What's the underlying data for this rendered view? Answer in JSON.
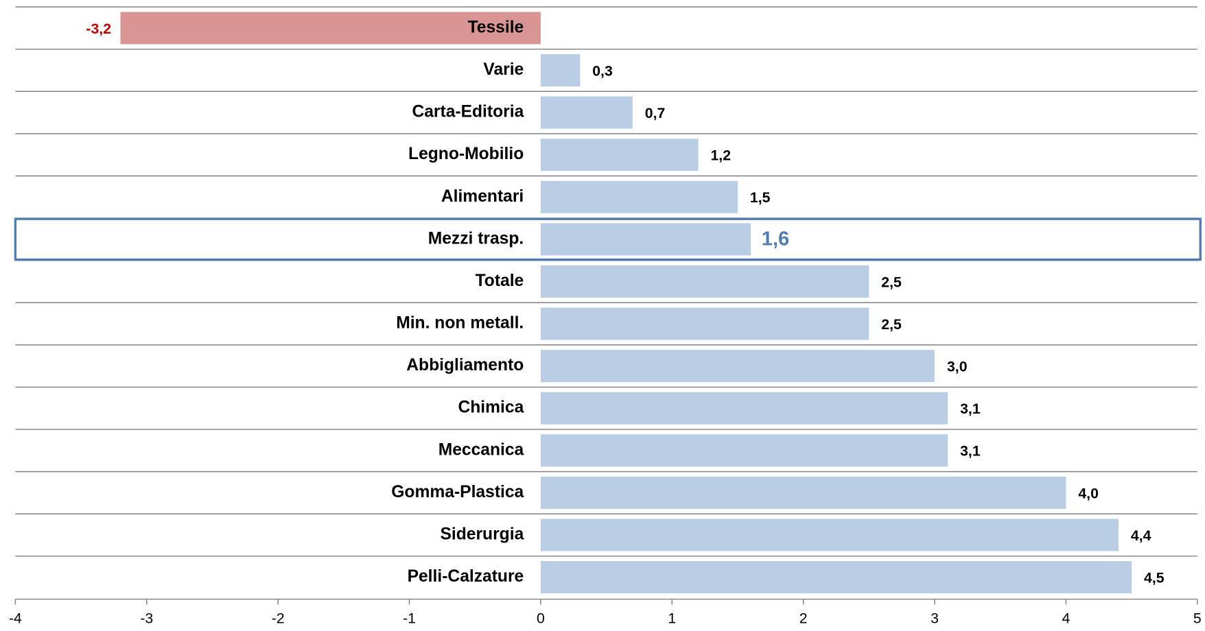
{
  "chart_data": {
    "type": "hbar",
    "categories": [
      "Tessile",
      "Varie",
      "Carta-Editoria",
      "Legno-Mobilio",
      "Alimentari",
      "Mezzi trasp.",
      "Totale",
      "Min. non metall.",
      "Abbigliamento",
      "Chimica",
      "Meccanica",
      "Gomma-Plastica",
      "Siderurgia",
      "Pelli-Calzature"
    ],
    "values": [
      -3.2,
      0.3,
      0.7,
      1.2,
      1.5,
      1.6,
      2.5,
      2.5,
      3.0,
      3.1,
      3.1,
      4.0,
      4.4,
      4.5
    ],
    "value_labels": [
      "-3,2",
      "0,3",
      "0,7",
      "1,2",
      "1,5",
      "1,6",
      "2,5",
      "2,5",
      "3,0",
      "3,1",
      "3,1",
      "4,0",
      "4,4",
      "4,5"
    ],
    "color": "#b9cde5",
    "negative_color": "#d99594",
    "negative_label_color": "#c00000",
    "highlight": 5,
    "highlight_color": "#4f7db3",
    "xlim": [
      -4,
      5
    ],
    "xticks": [
      -4,
      -3,
      -2,
      -1,
      0,
      1,
      2,
      3,
      4,
      5
    ]
  }
}
